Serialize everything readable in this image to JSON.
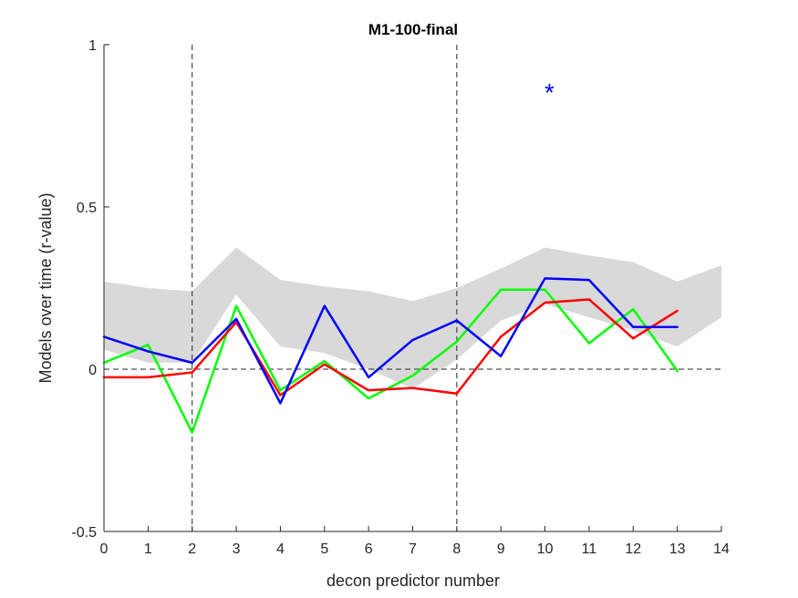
{
  "chart_data": {
    "type": "line",
    "title": "M1-100-final",
    "xlabel": "decon predictor number",
    "ylabel": "Models over time (r-value)",
    "xlim": [
      0,
      14
    ],
    "ylim": [
      -0.5,
      1
    ],
    "xticks": [
      0,
      1,
      2,
      3,
      4,
      5,
      6,
      7,
      8,
      9,
      10,
      11,
      12,
      13,
      14
    ],
    "yticks": [
      -0.5,
      0,
      0.5,
      1
    ],
    "ytick_labels": [
      "-0.5",
      "0",
      "0.5",
      "1"
    ],
    "grid": false,
    "legend": "none",
    "reference_lines": {
      "horizontal_y": 0,
      "vertical_x": [
        2,
        8
      ]
    },
    "band": {
      "color": "#d9d9d9",
      "x": [
        0,
        1,
        2,
        3,
        4,
        5,
        6,
        7,
        8,
        9,
        10,
        11,
        12,
        13,
        14
      ],
      "upper": [
        0.27,
        0.25,
        0.24,
        0.375,
        0.275,
        0.255,
        0.24,
        0.21,
        0.25,
        0.31,
        0.375,
        0.35,
        0.33,
        0.27,
        0.32
      ],
      "lower": [
        0.06,
        0.02,
        0.02,
        0.23,
        0.07,
        0.05,
        0.0,
        -0.06,
        0.03,
        0.15,
        0.2,
        0.16,
        0.12,
        0.07,
        0.16
      ]
    },
    "series": [
      {
        "color": "#00ff00",
        "x": [
          0,
          1,
          2,
          3,
          4,
          5,
          6,
          7,
          8,
          9,
          10,
          11,
          12,
          13
        ],
        "values": [
          0.02,
          0.075,
          -0.195,
          0.195,
          -0.065,
          0.025,
          -0.09,
          -0.02,
          0.085,
          0.245,
          0.245,
          0.08,
          0.185,
          -0.005
        ]
      },
      {
        "color": "#ff0000",
        "x": [
          0,
          1,
          2,
          3,
          4,
          5,
          6,
          7,
          8,
          9,
          10,
          11,
          12,
          13
        ],
        "values": [
          -0.025,
          -0.025,
          -0.01,
          0.145,
          -0.08,
          0.015,
          -0.065,
          -0.058,
          -0.075,
          0.1,
          0.205,
          0.215,
          0.095,
          0.18
        ]
      },
      {
        "color": "#0000ff",
        "x": [
          0,
          1,
          2,
          3,
          4,
          5,
          6,
          7,
          8,
          9,
          10,
          11,
          12,
          13
        ],
        "values": [
          0.1,
          0.055,
          0.02,
          0.155,
          -0.105,
          0.195,
          -0.025,
          0.09,
          0.15,
          0.04,
          0.28,
          0.275,
          0.13,
          0.13
        ]
      }
    ],
    "annotations": [
      {
        "text": "*",
        "x": 10.1,
        "y": 0.865,
        "color": "#0000ff"
      }
    ]
  }
}
